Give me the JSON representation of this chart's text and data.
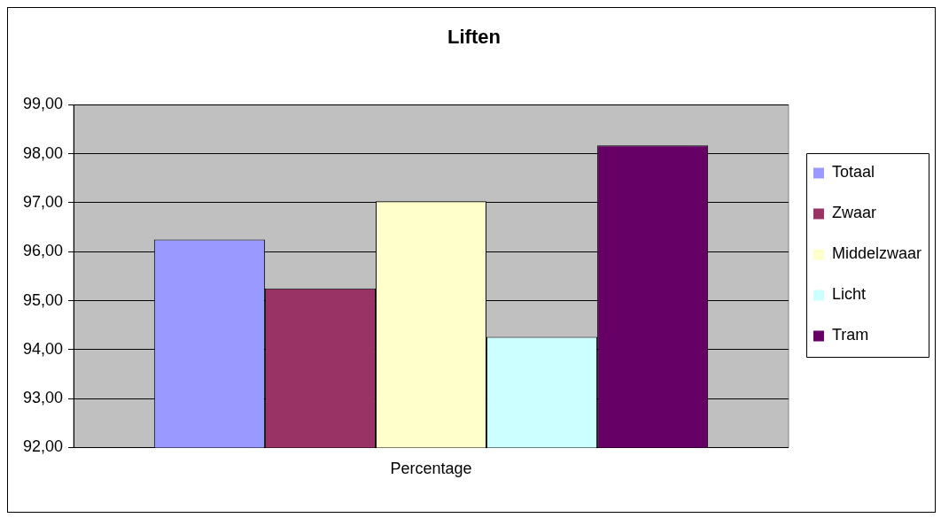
{
  "chart_data": {
    "type": "bar",
    "title": "Liften",
    "categories": [
      "Percentage"
    ],
    "series": [
      {
        "name": "Totaal",
        "color": "#9999ff",
        "values": [
          96.25
        ]
      },
      {
        "name": "Zwaar",
        "color": "#993366",
        "values": [
          95.25
        ]
      },
      {
        "name": "Middelzwaar",
        "color": "#ffffcc",
        "values": [
          97.03
        ]
      },
      {
        "name": "Licht",
        "color": "#ccffff",
        "values": [
          94.26
        ]
      },
      {
        "name": "Tram",
        "color": "#660066",
        "values": [
          98.17
        ]
      }
    ],
    "ylim": [
      92,
      99
    ],
    "yticks": [
      {
        "value": 92,
        "label": "92,00"
      },
      {
        "value": 93,
        "label": "93,00"
      },
      {
        "value": 94,
        "label": "94,00"
      },
      {
        "value": 95,
        "label": "95,00"
      },
      {
        "value": 96,
        "label": "96,00"
      },
      {
        "value": 97,
        "label": "97,00"
      },
      {
        "value": 98,
        "label": "98,00"
      },
      {
        "value": 99,
        "label": "99,00"
      }
    ],
    "grid": "y",
    "legend": "right"
  }
}
